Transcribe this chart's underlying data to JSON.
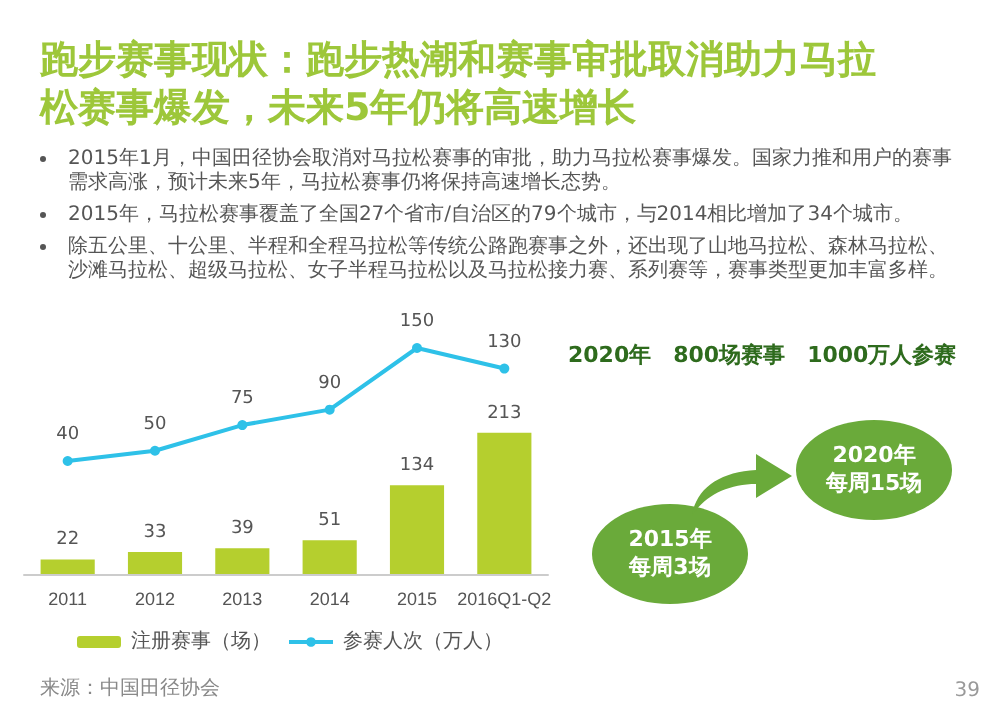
{
  "chart_data": {
    "type": "bar",
    "title": "跑步赛事现状：跑步热潮和赛事审批取消助力马拉松赛事爆发，未来5年仍将高速增长",
    "categories": [
      "2011",
      "2012",
      "2013",
      "2014",
      "2015",
      "2016Q1-Q2"
    ],
    "series": [
      {
        "name": "注册赛事（场）",
        "color": "#b5cf2e",
        "values": [
          22,
          33,
          39,
          51,
          134,
          213
        ]
      },
      {
        "name": "参赛人次（万人）",
        "type": "line",
        "axis": "y2",
        "color": "#2ec1e8",
        "values": [
          40,
          50,
          75,
          90,
          150,
          130
        ]
      }
    ],
    "data_labels": true,
    "legend": "bottom",
    "marker": "circle",
    "grid": false,
    "tick_labels": "x",
    "annotations": [
      "2015年1月，中国田径协会取消对马拉松赛事的审批，助力马拉松赛事爆发。国家力推和用户的赛事需求高涨，预计未来5年，马拉松赛事仍将保持高速增长态势。",
      "2015年，马拉松赛事覆盖了全国27个省市/自治区的79个城市，与2014相比增加了34个城市。",
      "除五公里、十公里、半程和全程马拉松等传统公路跑赛事之外，还出现了山地马拉松、森林马拉松、沙滩马拉松、超级马拉松、女子半程马拉松以及马拉松接力赛、系列赛等，赛事类型更加丰富多样。",
      "2020年　800场赛事　1000万人参赛",
      "2015年",
      "每周3场",
      "2020年",
      "每周15场",
      "来源：中国田径协会",
      "39"
    ]
  }
}
